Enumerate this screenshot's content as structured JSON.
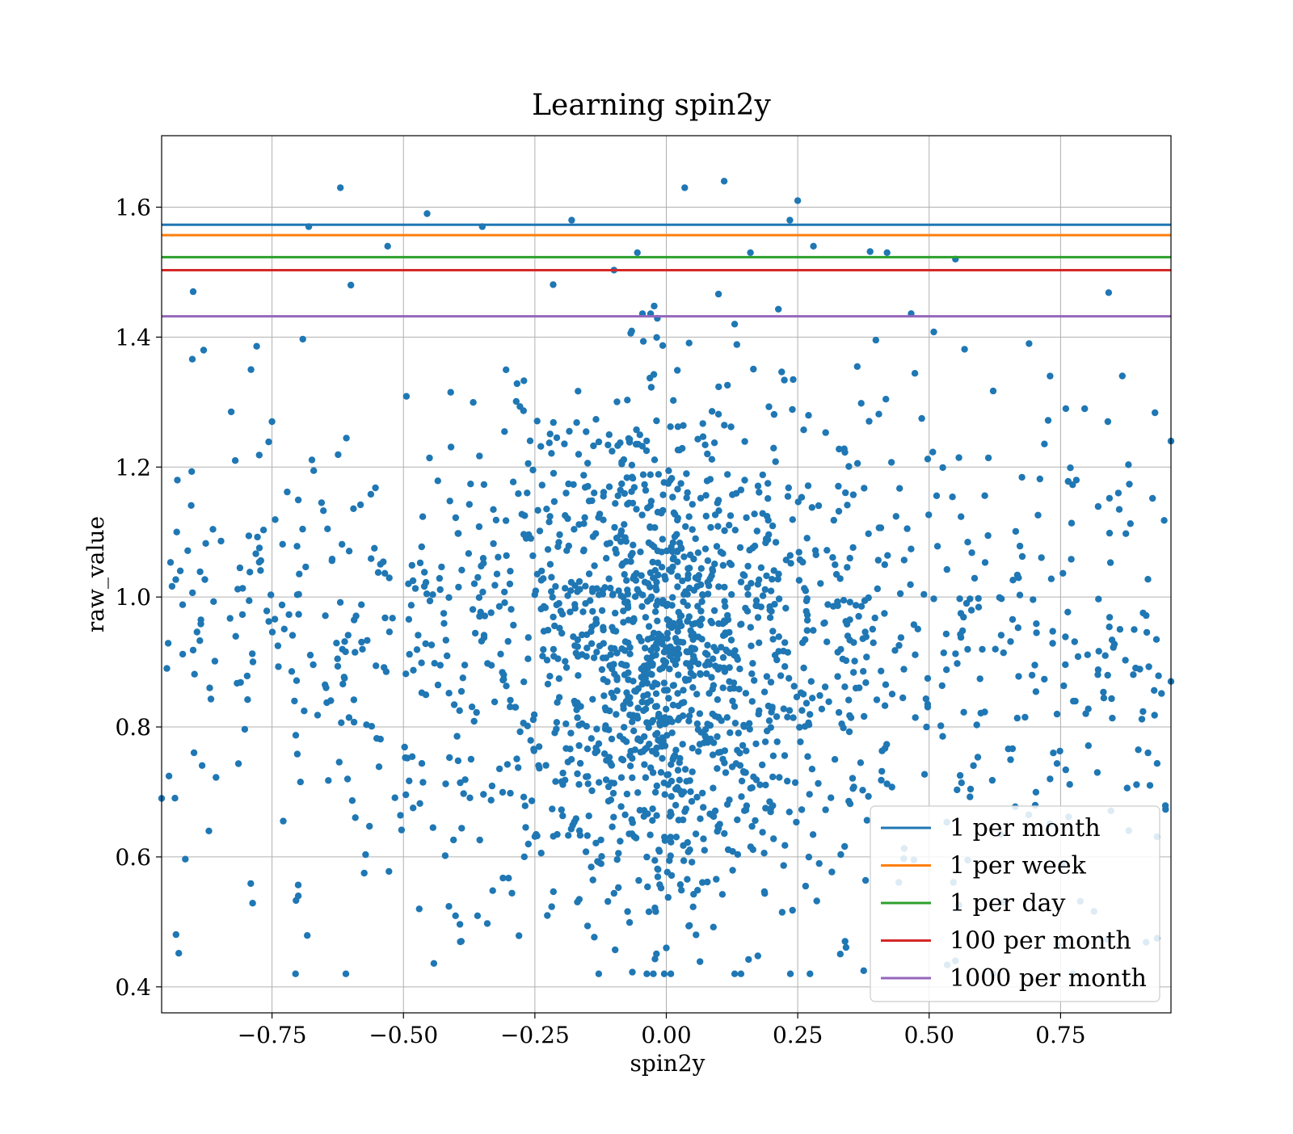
{
  "chart_data": {
    "type": "scatter",
    "title": "Learning spin2y",
    "xlabel": "spin2y",
    "ylabel": "raw_value",
    "xlim": [
      -0.96,
      0.96
    ],
    "ylim": [
      0.36,
      1.71
    ],
    "xticks": [
      -0.75,
      -0.5,
      -0.25,
      0.0,
      0.25,
      0.5,
      0.75
    ],
    "xtick_labels": [
      "−0.75",
      "−0.50",
      "−0.25",
      "0.00",
      "0.25",
      "0.50",
      "0.75"
    ],
    "yticks": [
      0.4,
      0.6,
      0.8,
      1.0,
      1.2,
      1.4,
      1.6
    ],
    "ytick_labels": [
      "0.4",
      "0.6",
      "0.8",
      "1.0",
      "1.2",
      "1.4",
      "1.6"
    ],
    "grid": true,
    "legend_position": "bottom-right",
    "series": [
      {
        "kind": "points",
        "color": "#1f77b4",
        "n_points": 2000,
        "x_distribution": "uniform in [-0.96, 0.96], denser near 0",
        "y_distribution": "centered near 0.9, spread about 0.2, range 0.42 to 1.64",
        "points": [
          [
            0.11,
            1.64
          ],
          [
            0.035,
            1.63
          ],
          [
            -0.62,
            1.63
          ],
          [
            0.25,
            1.61
          ],
          [
            -0.455,
            1.59
          ],
          [
            -0.18,
            1.58
          ],
          [
            0.235,
            1.58
          ],
          [
            -0.68,
            1.57
          ],
          [
            -0.35,
            1.57
          ],
          [
            0.28,
            1.54
          ],
          [
            -0.53,
            1.54
          ],
          [
            -0.055,
            1.53
          ],
          [
            0.16,
            1.53
          ],
          [
            0.42,
            1.53
          ],
          [
            0.55,
            1.52
          ],
          [
            0.13,
            1.42
          ],
          [
            -0.9,
            1.47
          ],
          [
            -0.6,
            1.48
          ],
          [
            -0.88,
            1.38
          ],
          [
            -0.79,
            1.35
          ],
          [
            -0.75,
            1.27
          ],
          [
            0.84,
            1.27
          ],
          [
            0.96,
            1.24
          ],
          [
            0.78,
            1.18
          ],
          [
            0.86,
            1.16
          ],
          [
            -0.93,
            1.18
          ],
          [
            -0.82,
            1.21
          ],
          [
            0.89,
            0.95
          ],
          [
            0.96,
            0.87
          ],
          [
            -0.95,
            0.89
          ],
          [
            -0.96,
            0.69
          ],
          [
            -0.87,
            0.64
          ],
          [
            -0.7,
            0.54
          ],
          [
            -0.39,
            0.47
          ],
          [
            0.0,
            0.46
          ],
          [
            0.13,
            0.42
          ],
          [
            0.34,
            0.47
          ],
          [
            0.55,
            0.44
          ],
          [
            -0.47,
            0.52
          ],
          [
            0.92,
            0.71
          ],
          [
            0.73,
            0.72
          ],
          [
            0.82,
            0.73
          ],
          [
            0.69,
            1.39
          ],
          [
            0.73,
            1.34
          ],
          [
            0.76,
            1.29
          ]
        ]
      },
      {
        "kind": "hline",
        "name": "1 per month",
        "y": 1.573,
        "color": "#1f77b4"
      },
      {
        "kind": "hline",
        "name": "1 per week",
        "y": 1.557,
        "color": "#ff7f0e"
      },
      {
        "kind": "hline",
        "name": "1 per day",
        "y": 1.523,
        "color": "#2ca02c"
      },
      {
        "kind": "hline",
        "name": "100 per month",
        "y": 1.503,
        "color": "#d62728"
      },
      {
        "kind": "hline",
        "name": "1000 per month",
        "y": 1.432,
        "color": "#9467bd"
      }
    ]
  }
}
